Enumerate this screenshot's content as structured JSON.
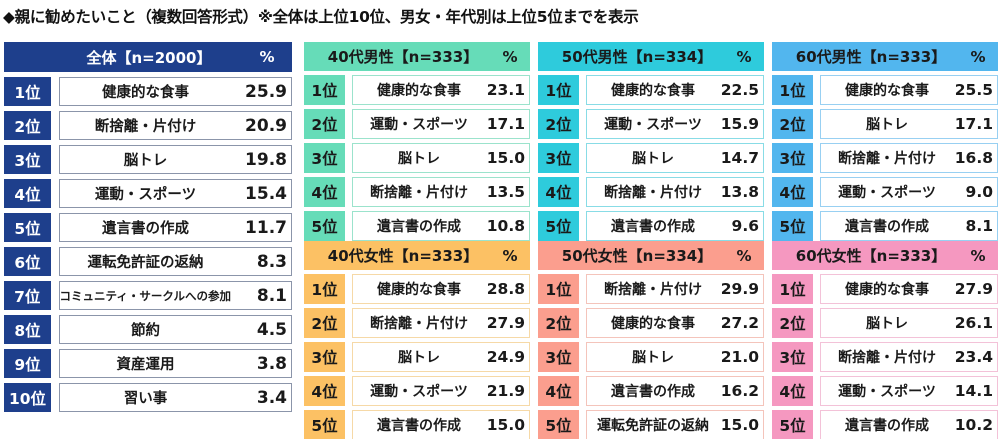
{
  "title": "◆親に勧めたいこと（複数回答形式）※全体は上位10位、男女・年代別は上位5位までを表示",
  "colors": {
    "overall": "#1e3f8c",
    "male_40s": "#66dcb8",
    "male_50s": "#2ecbdc",
    "male_60s": "#52b6ee",
    "female_40s": "#fcc164",
    "female_50s": "#fb9e8e",
    "female_60s": "#f598c0"
  },
  "overall": {
    "header": "全体【n=2000】",
    "pct": "%",
    "rows": [
      {
        "rank": "1位",
        "item": "健康的な食事",
        "value": "25.9"
      },
      {
        "rank": "2位",
        "item": "断捨離・片付け",
        "value": "20.9"
      },
      {
        "rank": "3位",
        "item": "脳トレ",
        "value": "19.8"
      },
      {
        "rank": "4位",
        "item": "運動・スポーツ",
        "value": "15.4"
      },
      {
        "rank": "5位",
        "item": "遺言書の作成",
        "value": "11.7"
      },
      {
        "rank": "6位",
        "item": "運転免許証の返納",
        "value": "8.3"
      },
      {
        "rank": "7位",
        "item": "コミュニティ・サークルへの参加",
        "value": "8.1"
      },
      {
        "rank": "8位",
        "item": "節約",
        "value": "4.5"
      },
      {
        "rank": "9位",
        "item": "資産運用",
        "value": "3.8"
      },
      {
        "rank": "10位",
        "item": "習い事",
        "value": "3.4"
      }
    ]
  },
  "groups": {
    "m40": {
      "header": "40代男性【n=333】",
      "pct": "%",
      "rows": [
        {
          "rank": "1位",
          "item": "健康的な食事",
          "value": "23.1"
        },
        {
          "rank": "2位",
          "item": "運動・スポーツ",
          "value": "17.1"
        },
        {
          "rank": "3位",
          "item": "脳トレ",
          "value": "15.0"
        },
        {
          "rank": "4位",
          "item": "断捨離・片付け",
          "value": "13.5"
        },
        {
          "rank": "5位",
          "item": "遺言書の作成",
          "value": "10.8"
        }
      ]
    },
    "m50": {
      "header": "50代男性【n=334】",
      "pct": "%",
      "rows": [
        {
          "rank": "1位",
          "item": "健康的な食事",
          "value": "22.5"
        },
        {
          "rank": "2位",
          "item": "運動・スポーツ",
          "value": "15.9"
        },
        {
          "rank": "3位",
          "item": "脳トレ",
          "value": "14.7"
        },
        {
          "rank": "4位",
          "item": "断捨離・片付け",
          "value": "13.8"
        },
        {
          "rank": "5位",
          "item": "遺言書の作成",
          "value": "9.6"
        }
      ]
    },
    "m60": {
      "header": "60代男性【n=333】",
      "pct": "%",
      "rows": [
        {
          "rank": "1位",
          "item": "健康的な食事",
          "value": "25.5"
        },
        {
          "rank": "2位",
          "item": "脳トレ",
          "value": "17.1"
        },
        {
          "rank": "3位",
          "item": "断捨離・片付け",
          "value": "16.8"
        },
        {
          "rank": "4位",
          "item": "運動・スポーツ",
          "value": "9.0"
        },
        {
          "rank": "5位",
          "item": "遺言書の作成",
          "value": "8.1"
        }
      ]
    },
    "f40": {
      "header": "40代女性【n=333】",
      "pct": "%",
      "rows": [
        {
          "rank": "1位",
          "item": "健康的な食事",
          "value": "28.8"
        },
        {
          "rank": "2位",
          "item": "断捨離・片付け",
          "value": "27.9"
        },
        {
          "rank": "3位",
          "item": "脳トレ",
          "value": "24.9"
        },
        {
          "rank": "4位",
          "item": "運動・スポーツ",
          "value": "21.9"
        },
        {
          "rank": "5位",
          "item": "遺言書の作成",
          "value": "15.0"
        }
      ]
    },
    "f50": {
      "header": "50代女性【n=334】",
      "pct": "%",
      "rows": [
        {
          "rank": "1位",
          "item": "断捨離・片付け",
          "value": "29.9"
        },
        {
          "rank": "2位",
          "item": "健康的な食事",
          "value": "27.2"
        },
        {
          "rank": "3位",
          "item": "脳トレ",
          "value": "21.0"
        },
        {
          "rank": "4位",
          "item": "遺言書の作成",
          "value": "16.2"
        },
        {
          "rank": "5位",
          "item": "運転免許証の返納",
          "value": "15.0"
        }
      ]
    },
    "f60": {
      "header": "60代女性【n=333】",
      "pct": "%",
      "rows": [
        {
          "rank": "1位",
          "item": "健康的な食事",
          "value": "27.9"
        },
        {
          "rank": "2位",
          "item": "脳トレ",
          "value": "26.1"
        },
        {
          "rank": "3位",
          "item": "断捨離・片付け",
          "value": "23.4"
        },
        {
          "rank": "4位",
          "item": "運動・スポーツ",
          "value": "14.1"
        },
        {
          "rank": "5位",
          "item": "遺言書の作成",
          "value": "10.2"
        }
      ]
    }
  },
  "chart_data": [
    {
      "type": "table",
      "title": "全体【n=2000】",
      "unit": "%",
      "categories": [
        "健康的な食事",
        "断捨離・片付け",
        "脳トレ",
        "運動・スポーツ",
        "遺言書の作成",
        "運転免許証の返納",
        "コミュニティ・サークルへの参加",
        "節約",
        "資産運用",
        "習い事"
      ],
      "values": [
        25.9,
        20.9,
        19.8,
        15.4,
        11.7,
        8.3,
        8.1,
        4.5,
        3.8,
        3.4
      ]
    },
    {
      "type": "table",
      "title": "40代男性【n=333】",
      "unit": "%",
      "categories": [
        "健康的な食事",
        "運動・スポーツ",
        "脳トレ",
        "断捨離・片付け",
        "遺言書の作成"
      ],
      "values": [
        23.1,
        17.1,
        15.0,
        13.5,
        10.8
      ]
    },
    {
      "type": "table",
      "title": "50代男性【n=334】",
      "unit": "%",
      "categories": [
        "健康的な食事",
        "運動・スポーツ",
        "脳トレ",
        "断捨離・片付け",
        "遺言書の作成"
      ],
      "values": [
        22.5,
        15.9,
        14.7,
        13.8,
        9.6
      ]
    },
    {
      "type": "table",
      "title": "60代男性【n=333】",
      "unit": "%",
      "categories": [
        "健康的な食事",
        "脳トレ",
        "断捨離・片付け",
        "運動・スポーツ",
        "遺言書の作成"
      ],
      "values": [
        25.5,
        17.1,
        16.8,
        9.0,
        8.1
      ]
    },
    {
      "type": "table",
      "title": "40代女性【n=333】",
      "unit": "%",
      "categories": [
        "健康的な食事",
        "断捨離・片付け",
        "脳トレ",
        "運動・スポーツ",
        "遺言書の作成"
      ],
      "values": [
        28.8,
        27.9,
        24.9,
        21.9,
        15.0
      ]
    },
    {
      "type": "table",
      "title": "50代女性【n=334】",
      "unit": "%",
      "categories": [
        "断捨離・片付け",
        "健康的な食事",
        "脳トレ",
        "遺言書の作成",
        "運転免許証の返納"
      ],
      "values": [
        29.9,
        27.2,
        21.0,
        16.2,
        15.0
      ]
    },
    {
      "type": "table",
      "title": "60代女性【n=333】",
      "unit": "%",
      "categories": [
        "健康的な食事",
        "脳トレ",
        "断捨離・片付け",
        "運動・スポーツ",
        "遺言書の作成"
      ],
      "values": [
        27.9,
        26.1,
        23.4,
        14.1,
        10.2
      ]
    }
  ]
}
